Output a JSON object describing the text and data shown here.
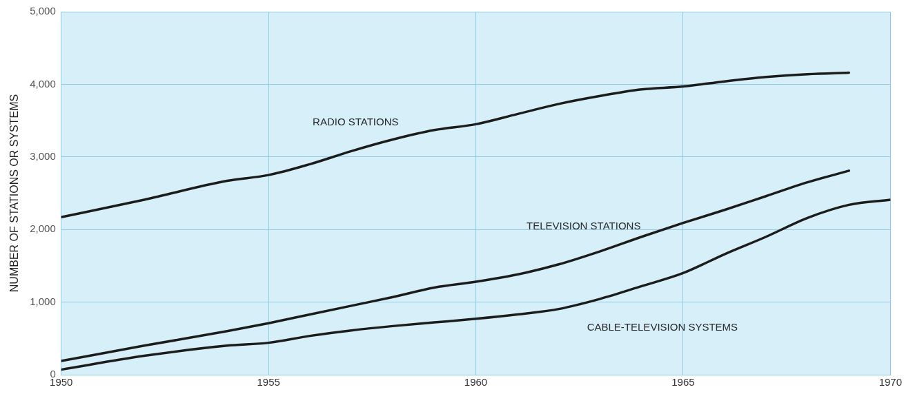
{
  "chart_data": {
    "type": "line",
    "ylabel": "NUMBER OF STATIONS OR SYSTEMS",
    "x": [
      1950,
      1952,
      1954,
      1955,
      1956,
      1957,
      1958,
      1959,
      1960,
      1961,
      1962,
      1963,
      1964,
      1965,
      1966,
      1967,
      1968,
      1969
    ],
    "series": [
      {
        "name": "RADIO STATIONS",
        "color": "#1c1c1c",
        "values": [
          2170,
          2410,
          2670,
          2750,
          2900,
          3080,
          3240,
          3370,
          3450,
          3590,
          3730,
          3840,
          3930,
          3970,
          4040,
          4100,
          4140,
          4160
        ]
      },
      {
        "name": "TELEVISION STATIONS",
        "color": "#1c1c1c",
        "values": [
          190,
          400,
          600,
          710,
          830,
          950,
          1070,
          1200,
          1280,
          1380,
          1520,
          1700,
          1900,
          2090,
          2270,
          2460,
          2650,
          2810
        ]
      },
      {
        "name": "CABLE-TELEVISION SYSTEMS",
        "color": "#1c1c1c",
        "x": [
          1950,
          1952,
          1954,
          1955,
          1956,
          1957,
          1958,
          1959,
          1960,
          1961,
          1962,
          1963,
          1964,
          1965,
          1966,
          1967,
          1968,
          1969,
          1970
        ],
        "values": [
          70,
          260,
          400,
          440,
          535,
          610,
          670,
          720,
          770,
          830,
          905,
          1045,
          1220,
          1400,
          1660,
          1900,
          2160,
          2340,
          2410
        ]
      }
    ],
    "xlim": [
      1950,
      1970
    ],
    "xticks": [
      1950,
      1955,
      1960,
      1965,
      1970
    ],
    "ylim": [
      0,
      5000
    ],
    "yticks": [
      {
        "value": 0,
        "label": "0"
      },
      {
        "value": 1000,
        "label": "1,000"
      },
      {
        "value": 2000,
        "label": "2,000"
      },
      {
        "value": 3000,
        "label": "3,000"
      },
      {
        "value": 4000,
        "label": "4,000"
      },
      {
        "value": 5000,
        "label": "5,000"
      }
    ],
    "grid": true,
    "legend": false,
    "marker": "none",
    "line_style": "solid"
  }
}
